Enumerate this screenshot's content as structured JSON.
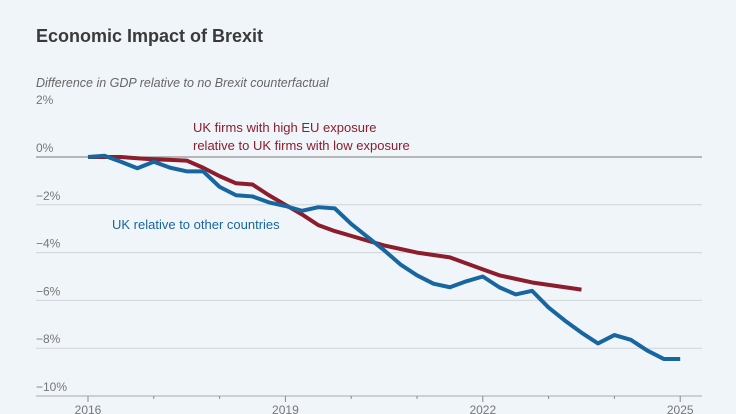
{
  "chart_data": {
    "type": "line",
    "title": "Economic Impact of Brexit",
    "ylabel": "Difference in GDP relative to no Brexit counterfactual",
    "xlabel": "",
    "xlim": [
      2015.5,
      2025.25
    ],
    "ylim": [
      -10,
      2
    ],
    "x_ticks": [
      2016,
      2019,
      2022,
      2025
    ],
    "y_ticks": [
      2,
      0,
      -2,
      -4,
      -6,
      -8,
      -10
    ],
    "y_tick_labels": [
      "2%",
      "0%",
      "−2%",
      "−4%",
      "−6%",
      "−8%",
      "−10%"
    ],
    "grid": "horizontal",
    "series": [
      {
        "name": "UK firms with high EU exposure relative to UK firms with low exposure",
        "label_lines": [
          "UK firms with high EU exposure",
          "relative to UK firms with low exposure"
        ],
        "color": "#8c1d2c",
        "x": [
          2016,
          2016.25,
          2016.5,
          2016.75,
          2017,
          2017.25,
          2017.5,
          2017.75,
          2018,
          2018.25,
          2018.5,
          2018.75,
          2019,
          2019.25,
          2019.5,
          2019.75,
          2020,
          2020.25,
          2020.5,
          2020.75,
          2021,
          2021.25,
          2021.5,
          2021.75,
          2022,
          2022.25,
          2022.5,
          2022.75,
          2023,
          2023.25,
          2023.5
        ],
        "y": [
          0,
          0,
          0,
          -0.05,
          -0.1,
          -0.12,
          -0.15,
          -0.45,
          -0.8,
          -1.1,
          -1.15,
          -1.6,
          -2.0,
          -2.4,
          -2.85,
          -3.1,
          -3.3,
          -3.5,
          -3.7,
          -3.85,
          -4.0,
          -4.1,
          -4.2,
          -4.45,
          -4.7,
          -4.95,
          -5.1,
          -5.25,
          -5.35,
          -5.45,
          -5.55
        ]
      },
      {
        "name": "UK relative to other countries",
        "color": "#1866a0",
        "x": [
          2016,
          2016.25,
          2016.5,
          2016.75,
          2017,
          2017.25,
          2017.5,
          2017.75,
          2018,
          2018.25,
          2018.5,
          2018.75,
          2019,
          2019.25,
          2019.5,
          2019.75,
          2020,
          2020.25,
          2020.5,
          2020.75,
          2021,
          2021.25,
          2021.5,
          2021.75,
          2022,
          2022.25,
          2022.5,
          2022.75,
          2023,
          2023.25,
          2023.5,
          2023.75,
          2024,
          2024.25,
          2024.5,
          2024.75,
          2025
        ],
        "y": [
          0,
          0.05,
          -0.2,
          -0.47,
          -0.2,
          -0.45,
          -0.6,
          -0.6,
          -1.25,
          -1.6,
          -1.65,
          -1.9,
          -2.05,
          -2.25,
          -2.1,
          -2.15,
          -2.8,
          -3.35,
          -3.9,
          -4.5,
          -4.95,
          -5.3,
          -5.45,
          -5.2,
          -5.0,
          -5.45,
          -5.75,
          -5.6,
          -6.3,
          -6.85,
          -7.35,
          -7.8,
          -7.45,
          -7.65,
          -8.1,
          -8.45,
          -8.45
        ]
      }
    ]
  }
}
